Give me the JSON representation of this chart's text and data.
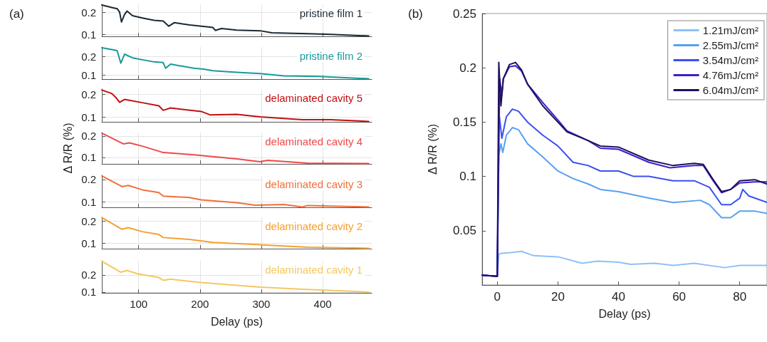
{
  "chart_data": [
    {
      "type": "line",
      "title": "(a)",
      "log": true,
      "xlim": [
        40,
        480
      ],
      "xticks": [
        100,
        200,
        300,
        400
      ],
      "ylim": [
        0.094,
        0.256
      ],
      "yticks": [
        0.1,
        0.2
      ],
      "grid": true,
      "tick_labels": "y",
      "marker": "none",
      "line_style": "solid",
      "series": [
        {
          "name": "pristine film 1",
          "color": "#1a2a33",
          "x": [
            40,
            56,
            65,
            69,
            72,
            77,
            81,
            90,
            106,
            125,
            140,
            149,
            158,
            183,
            221,
            225,
            235,
            260,
            298,
            317,
            375,
            413,
            475
          ],
          "values": [
            0.25,
            0.232,
            0.223,
            0.2,
            0.147,
            0.186,
            0.207,
            0.179,
            0.167,
            0.155,
            0.152,
            0.129,
            0.144,
            0.134,
            0.124,
            0.113,
            0.12,
            0.114,
            0.112,
            0.105,
            0.102,
            0.1,
            0.095
          ]
        }
      ]
    },
    {
      "type": "line",
      "log": true,
      "xlim": [
        40,
        480
      ],
      "xticks": [
        100,
        200,
        300,
        400
      ],
      "ylim": [
        0.087,
        0.287
      ],
      "yticks": [
        0.1,
        0.2
      ],
      "grid": true,
      "tick_labels": "y",
      "marker": "none",
      "line_style": "solid",
      "series": [
        {
          "name": "pristine film 2",
          "color": "#1a9a9a",
          "x": [
            40,
            62,
            65,
            69,
            71,
            77,
            90,
            125,
            140,
            144,
            152,
            190,
            206,
            221,
            260,
            298,
            337,
            394,
            475
          ],
          "values": [
            0.28,
            0.255,
            0.25,
            0.183,
            0.157,
            0.22,
            0.192,
            0.165,
            0.161,
            0.13,
            0.152,
            0.13,
            0.126,
            0.119,
            0.112,
            0.107,
            0.098,
            0.096,
            0.088
          ]
        }
      ]
    },
    {
      "type": "line",
      "log": true,
      "xlim": [
        40,
        480
      ],
      "xticks": [
        100,
        200,
        300,
        400
      ],
      "ylim": [
        0.086,
        0.233
      ],
      "yticks": [
        0.1,
        0.2
      ],
      "grid": true,
      "tick_labels": "y",
      "marker": "none",
      "line_style": "solid",
      "series": [
        {
          "name": "delaminated cavity 5",
          "color": "#c01010",
          "x": [
            40,
            56,
            63,
            69,
            77,
            106,
            133,
            140,
            152,
            202,
            217,
            260,
            298,
            367,
            413,
            475
          ],
          "values": [
            0.226,
            0.204,
            0.18,
            0.156,
            0.17,
            0.154,
            0.14,
            0.122,
            0.131,
            0.118,
            0.106,
            0.108,
            0.1,
            0.092,
            0.092,
            0.087
          ]
        }
      ]
    },
    {
      "type": "line",
      "log": true,
      "ylabel": "Δ R/R (%)",
      "xlim": [
        40,
        480
      ],
      "xticks": [
        100,
        200,
        300,
        400
      ],
      "ylim": [
        0.081,
        0.224
      ],
      "yticks": [
        0.1,
        0.2
      ],
      "grid": true,
      "tick_labels": "y",
      "marker": "none",
      "line_style": "solid",
      "series": [
        {
          "name": "delaminated cavity 4",
          "color": "#f04a4a",
          "x": [
            40,
            75,
            85,
            106,
            140,
            183,
            202,
            260,
            298,
            310,
            375,
            475
          ],
          "values": [
            0.219,
            0.155,
            0.16,
            0.144,
            0.117,
            0.11,
            0.106,
            0.095,
            0.087,
            0.091,
            0.083,
            0.082
          ]
        }
      ]
    },
    {
      "type": "line",
      "log": true,
      "xlim": [
        40,
        480
      ],
      "xticks": [
        100,
        200,
        300,
        400
      ],
      "ylim": [
        0.084,
        0.228
      ],
      "yticks": [
        0.1,
        0.2
      ],
      "grid": true,
      "tick_labels": "y",
      "marker": "none",
      "line_style": "solid",
      "series": [
        {
          "name": "delaminated cavity 3",
          "color": "#f0703a",
          "x": [
            40,
            73,
            83,
            106,
            133,
            140,
            183,
            202,
            260,
            290,
            337,
            367,
            375,
            475
          ],
          "values": [
            0.224,
            0.16,
            0.166,
            0.145,
            0.133,
            0.119,
            0.114,
            0.106,
            0.097,
            0.09,
            0.092,
            0.085,
            0.089,
            0.085
          ]
        }
      ]
    },
    {
      "type": "line",
      "log": true,
      "xlim": [
        40,
        480
      ],
      "xticks": [
        100,
        200,
        300,
        400
      ],
      "ylim": [
        0.084,
        0.224
      ],
      "yticks": [
        0.1,
        0.2
      ],
      "grid": true,
      "tick_labels": "y",
      "marker": "none",
      "line_style": "solid",
      "series": [
        {
          "name": "delaminated cavity 2",
          "color": "#f5a030",
          "x": [
            40,
            73,
            83,
            106,
            133,
            140,
            183,
            221,
            298,
            375,
            475
          ],
          "values": [
            0.222,
            0.154,
            0.162,
            0.143,
            0.131,
            0.119,
            0.112,
            0.102,
            0.095,
            0.088,
            0.085
          ]
        }
      ]
    },
    {
      "type": "line",
      "log": true,
      "xlabel": "Delay (ps)",
      "xlim": [
        40,
        480
      ],
      "xticks": [
        100,
        200,
        300,
        400
      ],
      "ylim": [
        0.097,
        0.356
      ],
      "yticks": [
        0.1,
        0.2
      ],
      "grid": true,
      "marker": "none",
      "line_style": "solid",
      "series": [
        {
          "name": "delaminated cavity 1",
          "color": "#f5c860",
          "x": [
            40,
            71,
            81,
            98,
            133,
            140,
            152,
            202,
            260,
            298,
            375,
            475
          ],
          "values": [
            0.35,
            0.224,
            0.241,
            0.21,
            0.18,
            0.161,
            0.169,
            0.147,
            0.131,
            0.122,
            0.111,
            0.1
          ]
        }
      ]
    },
    {
      "type": "line",
      "title": "(b)",
      "xlabel": "Delay (ps)",
      "ylabel": "Δ R/R (%)",
      "xlim": [
        -5,
        89
      ],
      "xticks": [
        0,
        20,
        40,
        60,
        80
      ],
      "ylim": [
        0,
        0.25
      ],
      "yticks": [
        0.05,
        0.1,
        0.15,
        0.2,
        0.25
      ],
      "grid": false,
      "legend": "top right",
      "marker": "none",
      "line_style": "solid",
      "series": [
        {
          "name": "1.21mJ/cm²",
          "color": "#8fc0f8",
          "x": [
            -5,
            0,
            0.5,
            1,
            5,
            8,
            12,
            20,
            28,
            33,
            40,
            44,
            52,
            58,
            65,
            75,
            80,
            89
          ],
          "values": [
            0.009,
            0.008,
            0.028,
            0.029,
            0.03,
            0.031,
            0.027,
            0.026,
            0.02,
            0.022,
            0.021,
            0.019,
            0.02,
            0.018,
            0.02,
            0.016,
            0.018,
            0.018
          ]
        },
        {
          "name": "2.55mJ/cm²",
          "color": "#5aa0f0",
          "x": [
            -5,
            0,
            0.5,
            1.2,
            1.8,
            3,
            5,
            7,
            10,
            15,
            20,
            25,
            30,
            34,
            40,
            50,
            58,
            67,
            70,
            74,
            77,
            80,
            85,
            89
          ],
          "values": [
            0.009,
            0.008,
            0.12,
            0.13,
            0.122,
            0.138,
            0.145,
            0.143,
            0.13,
            0.118,
            0.105,
            0.098,
            0.093,
            0.088,
            0.086,
            0.08,
            0.076,
            0.078,
            0.074,
            0.062,
            0.062,
            0.068,
            0.068,
            0.066
          ]
        },
        {
          "name": "3.54mJ/cm²",
          "color": "#3a50f0",
          "x": [
            -5,
            0,
            0.5,
            1.5,
            3,
            5,
            7,
            10,
            15,
            20,
            25,
            30,
            34,
            40,
            45,
            50,
            58,
            65,
            70,
            74,
            77,
            80,
            81,
            83,
            89
          ],
          "values": [
            0.009,
            0.008,
            0.16,
            0.135,
            0.155,
            0.162,
            0.16,
            0.15,
            0.138,
            0.128,
            0.113,
            0.11,
            0.105,
            0.105,
            0.1,
            0.1,
            0.096,
            0.096,
            0.09,
            0.074,
            0.074,
            0.08,
            0.088,
            0.082,
            0.076
          ]
        },
        {
          "name": "4.76mJ/cm²",
          "color": "#3a20d0",
          "x": [
            -5,
            0,
            0.8,
            1.5,
            2,
            4,
            6,
            8,
            10,
            15,
            20,
            23,
            30,
            34,
            40,
            50,
            57,
            65,
            68,
            71,
            74,
            77,
            80,
            85,
            89
          ],
          "values": [
            0.009,
            0.008,
            0.19,
            0.175,
            0.19,
            0.201,
            0.202,
            0.197,
            0.185,
            0.168,
            0.152,
            0.142,
            0.133,
            0.126,
            0.125,
            0.113,
            0.108,
            0.11,
            0.11,
            0.097,
            0.085,
            0.088,
            0.094,
            0.095,
            0.095
          ]
        },
        {
          "name": "6.04mJ/cm²",
          "color": "#20105a",
          "x": [
            -5,
            0,
            0.5,
            1.2,
            2,
            4,
            6,
            8,
            10,
            15,
            20,
            23,
            30,
            34,
            40,
            50,
            58,
            65,
            68,
            71,
            74,
            77,
            80,
            85,
            89
          ],
          "values": [
            0.009,
            0.008,
            0.205,
            0.165,
            0.19,
            0.203,
            0.205,
            0.198,
            0.185,
            0.165,
            0.15,
            0.141,
            0.133,
            0.128,
            0.127,
            0.115,
            0.11,
            0.112,
            0.111,
            0.098,
            0.086,
            0.088,
            0.096,
            0.097,
            0.093
          ]
        }
      ]
    }
  ]
}
